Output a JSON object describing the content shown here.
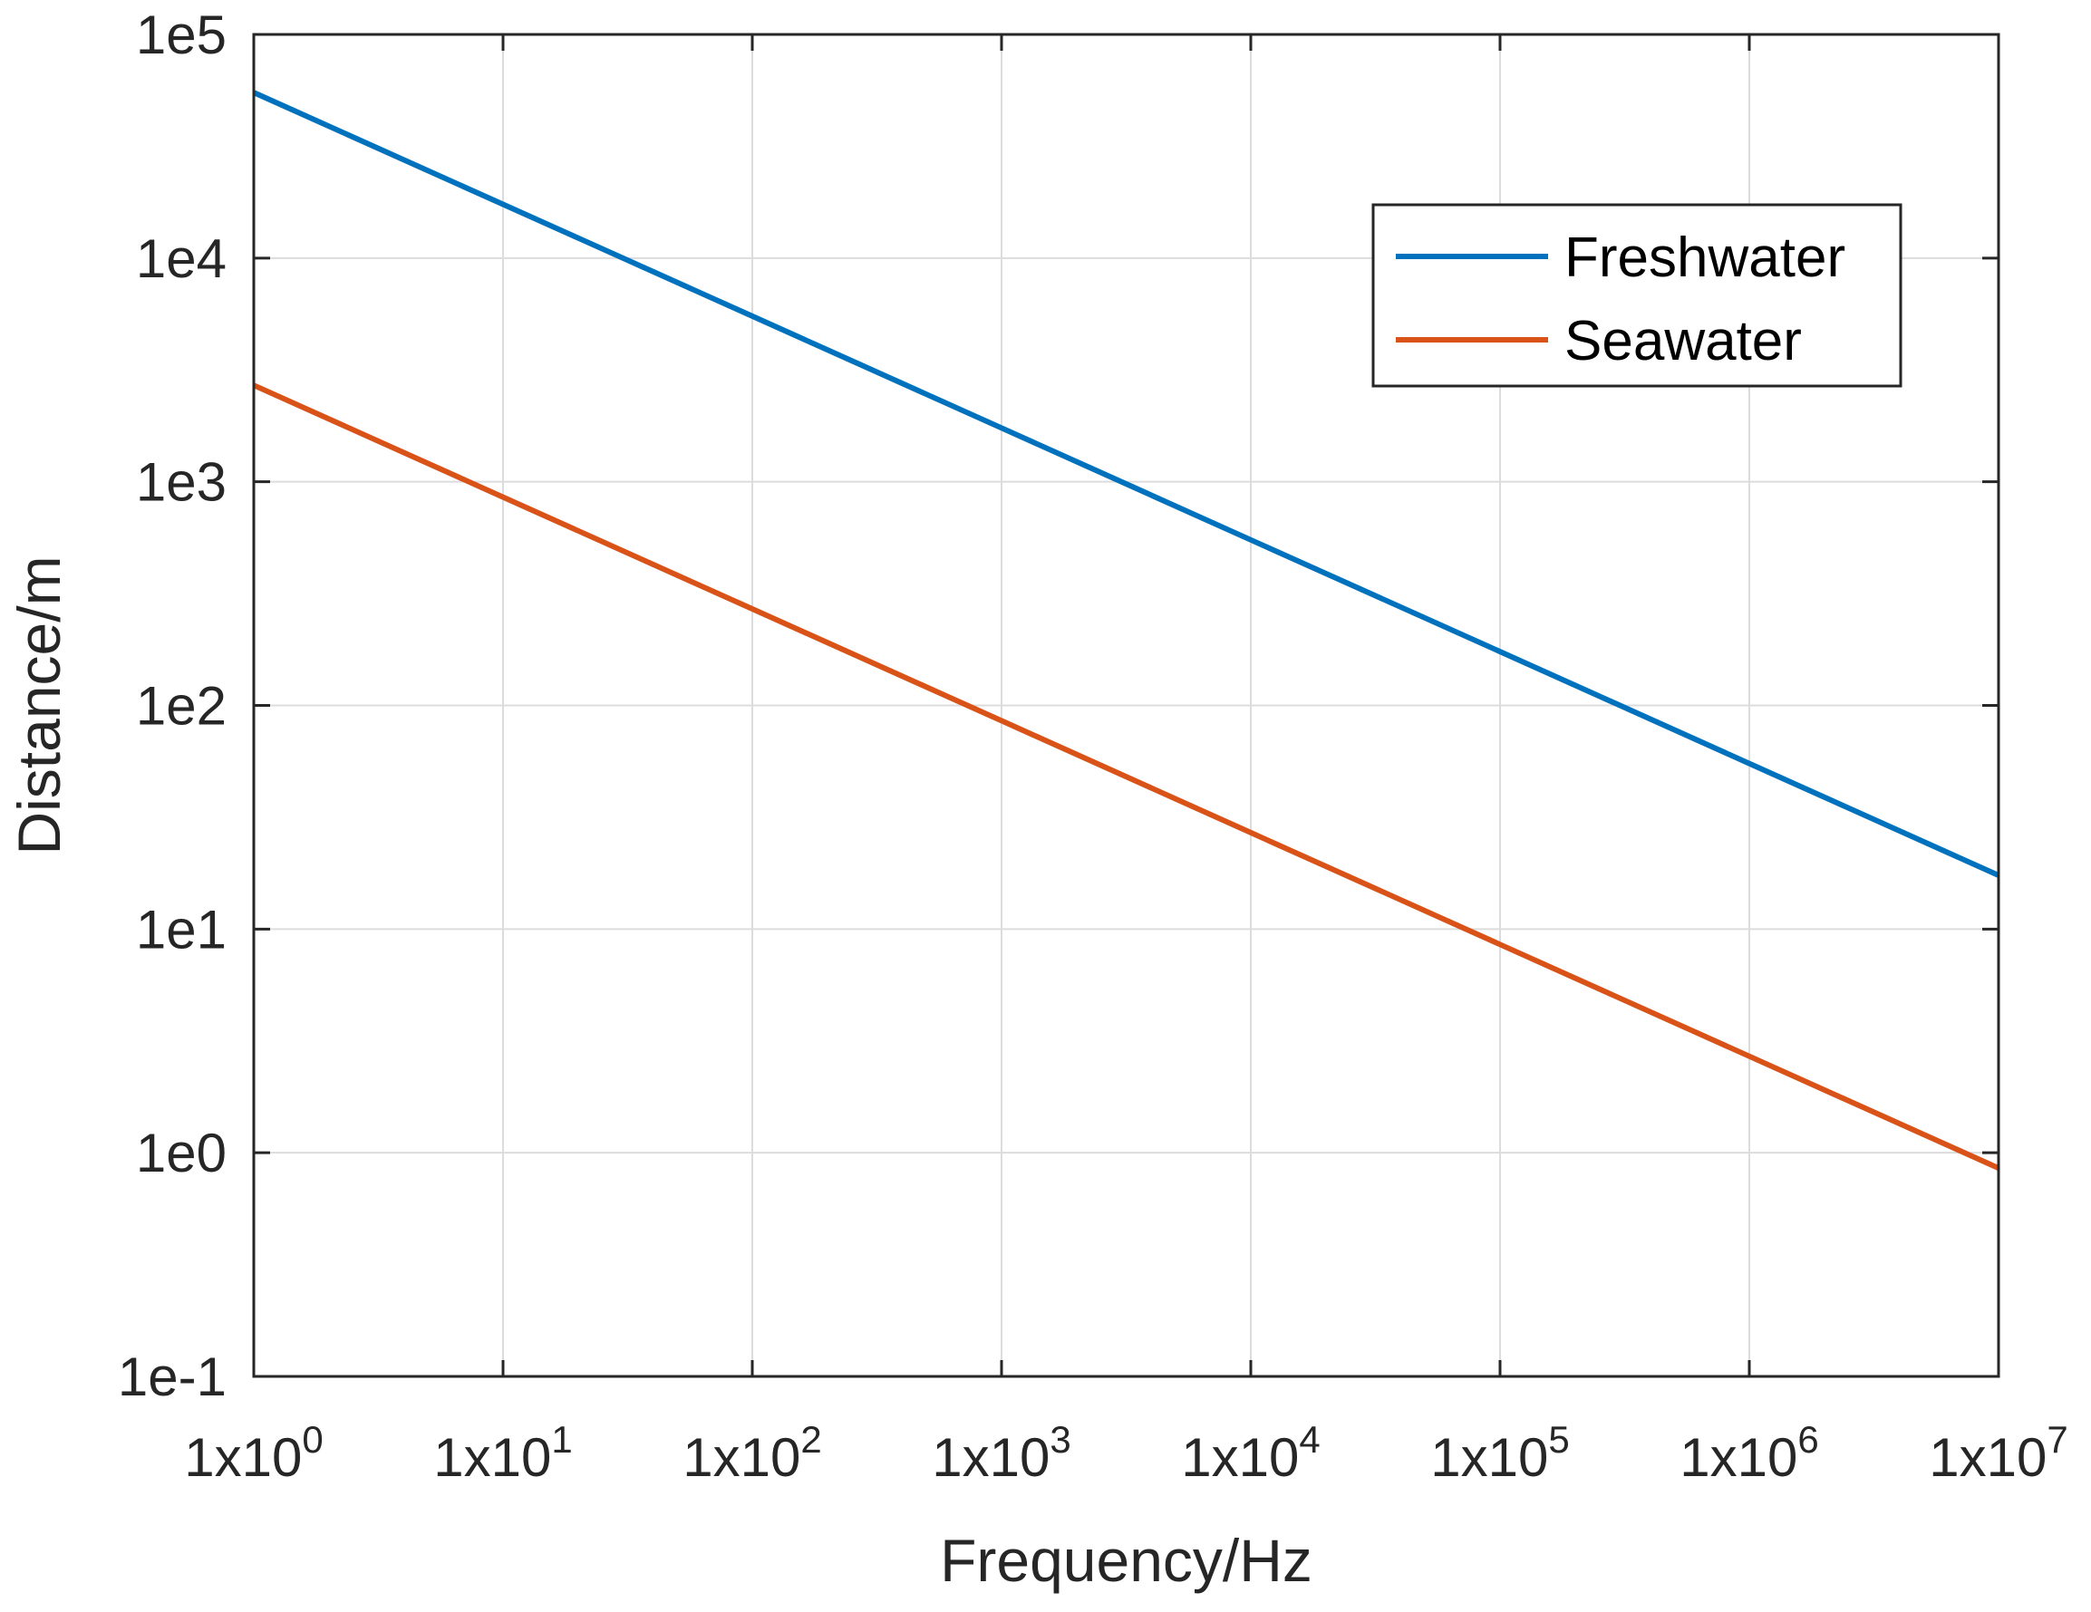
{
  "chart_data": {
    "type": "line",
    "title": "",
    "xlabel": "Frequency/Hz",
    "ylabel": "Distance/m",
    "xscale": "log",
    "yscale": "log",
    "xlim": [
      1,
      10000000
    ],
    "ylim": [
      0.1,
      100000
    ],
    "grid": true,
    "legend_position": "top-right",
    "x_ticks": [
      {
        "base": "1x10",
        "exp": "0"
      },
      {
        "base": "1x10",
        "exp": "1"
      },
      {
        "base": "1x10",
        "exp": "2"
      },
      {
        "base": "1x10",
        "exp": "3"
      },
      {
        "base": "1x10",
        "exp": "4"
      },
      {
        "base": "1x10",
        "exp": "5"
      },
      {
        "base": "1x10",
        "exp": "6"
      },
      {
        "base": "1x10",
        "exp": "7"
      }
    ],
    "y_ticks": [
      "1e-1",
      "1e0",
      "1e1",
      "1e2",
      "1e3",
      "1e4",
      "1e5"
    ],
    "x": [
      1,
      10,
      100,
      1000,
      10000,
      100000,
      1000000,
      10000000
    ],
    "series": [
      {
        "name": "Freshwater",
        "color": "#0072BD",
        "values": [
          55000,
          17400,
          5500,
          1740,
          550,
          174,
          55,
          17.4
        ]
      },
      {
        "name": "Seawater",
        "color": "#D95319",
        "values": [
          2700,
          854,
          270,
          85.4,
          27,
          8.54,
          2.7,
          0.854
        ]
      }
    ]
  }
}
